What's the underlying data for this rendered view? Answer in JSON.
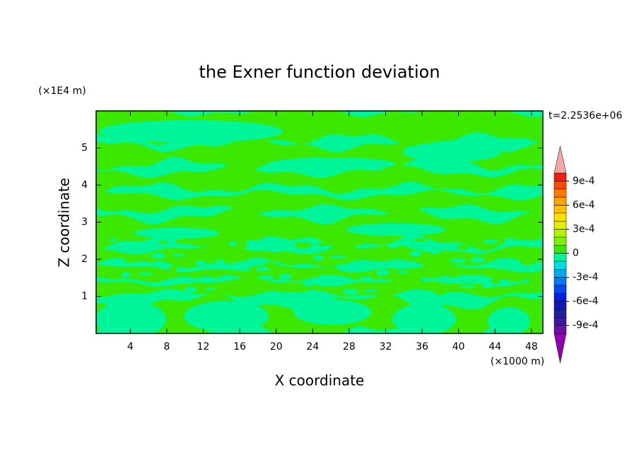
{
  "chart_data": {
    "type": "contour",
    "title": "the Exner function deviation",
    "x_label": "X coordinate",
    "y_label": "Z coordinate",
    "x_unit": "(×1000 m)",
    "y_unit": "(×1E4 m)",
    "annotation": "t=2.2536e+06",
    "xlim": [
      0.25,
      49.25
    ],
    "ylim": [
      0,
      6
    ],
    "xticks": [
      4,
      8,
      12,
      16,
      20,
      24,
      28,
      32,
      36,
      40,
      44,
      48
    ],
    "yticks": [
      1,
      2,
      3,
      4,
      5
    ],
    "levels": [
      -0.001,
      -0.0009,
      -0.0008,
      -0.0007,
      -0.0006,
      -0.0005,
      -0.0004,
      -0.0003,
      -0.0002,
      -0.0001,
      0,
      0.0001,
      0.0002,
      0.0003,
      0.0004,
      0.0005,
      0.0006,
      0.0007,
      0.0008,
      0.0009,
      0.001
    ],
    "colors": [
      "#6a10a8",
      "#3a18a0",
      "#22209a",
      "#1414b8",
      "#0020e0",
      "#0048f0",
      "#0078f0",
      "#00a8f0",
      "#00dce6",
      "#00f59a",
      "#3ce800",
      "#7cf000",
      "#b4f000",
      "#e0f000",
      "#ffe000",
      "#ffc000",
      "#ffa000",
      "#ff7800",
      "#ff4a00",
      "#f01e10"
    ],
    "under_color": "#9000b0",
    "over_color": "#f4a4a4",
    "colorbar_ticks": [
      {
        "value": -0.0009,
        "label": "-9e-4"
      },
      {
        "value": -0.0006,
        "label": "-6e-4"
      },
      {
        "value": -0.0003,
        "label": "-3e-4"
      },
      0,
      {
        "value": 0.0003,
        "label": "3e-4"
      },
      {
        "value": 0.0006,
        "label": "6e-4"
      },
      {
        "value": 0.0009,
        "label": "9e-4"
      }
    ]
  }
}
